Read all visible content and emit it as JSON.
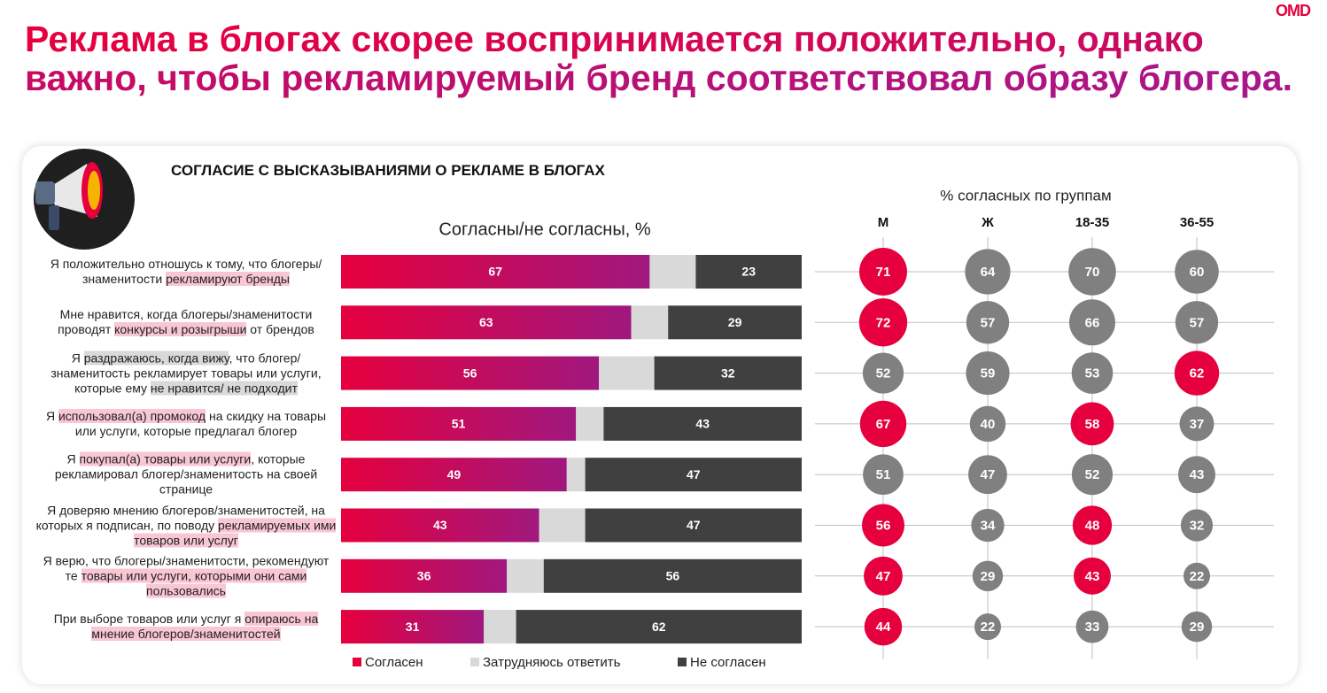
{
  "logo": "OMD",
  "title": "Реклама в блогах скорее воспринимается положительно, однако важно, чтобы рекламируемый бренд соответствовал образу блогера.",
  "section_title": "СОГЛАСИЕ С ВЫСКАЗЫВАНИЯМИ О РЕКЛАМЕ В БЛОГАХ",
  "highlight_colors": {
    "pink": "#f9c6d3",
    "gray": "#d9d9d9"
  },
  "statements": [
    {
      "parts": [
        "Я положительно отношусь к тому, что блогеры/знаменитости ",
        {
          "text": "рекламируют бренды",
          "highlight": "pink"
        }
      ]
    },
    {
      "parts": [
        "Мне нравится, когда блогеры/знаменитости проводят ",
        {
          "text": "конкурсы и розыгрыши",
          "highlight": "pink"
        },
        " от брендов"
      ]
    },
    {
      "parts": [
        "Я ",
        {
          "text": "раздражаюсь, когда вижу",
          "highlight": "gray"
        },
        ", что блогер/знаменитость рекламирует товары или услуги, которые ему ",
        {
          "text": "не нравится/ не подходит",
          "highlight": "gray"
        }
      ]
    },
    {
      "parts": [
        "Я ",
        {
          "text": "использовал(а) промокод",
          "highlight": "pink"
        },
        " на скидку на товары или услуги, которые предлагал блогер"
      ]
    },
    {
      "parts": [
        "Я ",
        {
          "text": "покупал(а) товары или услуги",
          "highlight": "pink"
        },
        ", которые рекламировал блогер/знаменитость на своей странице"
      ]
    },
    {
      "parts": [
        "Я доверяю мнению блогеров/знаменитостей, на которых я подписан, по поводу ",
        {
          "text": "рекламируемых ими товаров или услуг",
          "highlight": "pink"
        }
      ]
    },
    {
      "parts": [
        "Я верю, что блогеры/знаменитости, рекомендуют те ",
        {
          "text": "товары или услуги, которыми они сами пользовались",
          "highlight": "pink"
        }
      ]
    },
    {
      "parts": [
        "При выборе товаров или услуг я ",
        {
          "text": "опираюсь на мнение блогеров/знаменитостей",
          "highlight": "pink"
        }
      ]
    }
  ],
  "chart_data": [
    {
      "type": "stacked-bar",
      "title": "Согласны/не согласны, %",
      "xlim": [
        0,
        100
      ],
      "series": [
        {
          "name": "Согласен",
          "color": "#e6003d",
          "values": [
            67,
            63,
            56,
            51,
            49,
            43,
            36,
            31
          ]
        },
        {
          "name": "Затрудняюсь ответить",
          "color": "#d9d9d9",
          "values": [
            10,
            8,
            12,
            6,
            4,
            10,
            8,
            7
          ],
          "labels": false
        },
        {
          "name": "Не согласен",
          "color": "#404040",
          "values": [
            23,
            29,
            32,
            43,
            47,
            47,
            56,
            62
          ]
        }
      ]
    },
    {
      "type": "bubble-grid",
      "title": "% согласных по группам",
      "color": "#808080",
      "highlight_color": "#e6003d",
      "groups": [
        {
          "name": "М",
          "values": [
            71,
            72,
            52,
            67,
            51,
            56,
            47,
            44
          ],
          "highlight": [
            true,
            true,
            false,
            true,
            false,
            true,
            true,
            true
          ]
        },
        {
          "name": "Ж",
          "values": [
            64,
            57,
            59,
            40,
            47,
            34,
            29,
            22
          ],
          "highlight": [
            false,
            false,
            false,
            false,
            false,
            false,
            false,
            false
          ]
        },
        {
          "name": "18-35",
          "values": [
            70,
            66,
            53,
            58,
            52,
            48,
            43,
            33
          ],
          "highlight": [
            false,
            false,
            false,
            true,
            false,
            true,
            true,
            false
          ]
        },
        {
          "name": "36-55",
          "values": [
            60,
            57,
            62,
            37,
            43,
            32,
            22,
            29
          ],
          "highlight": [
            false,
            false,
            true,
            false,
            false,
            false,
            false,
            false
          ]
        }
      ]
    }
  ]
}
